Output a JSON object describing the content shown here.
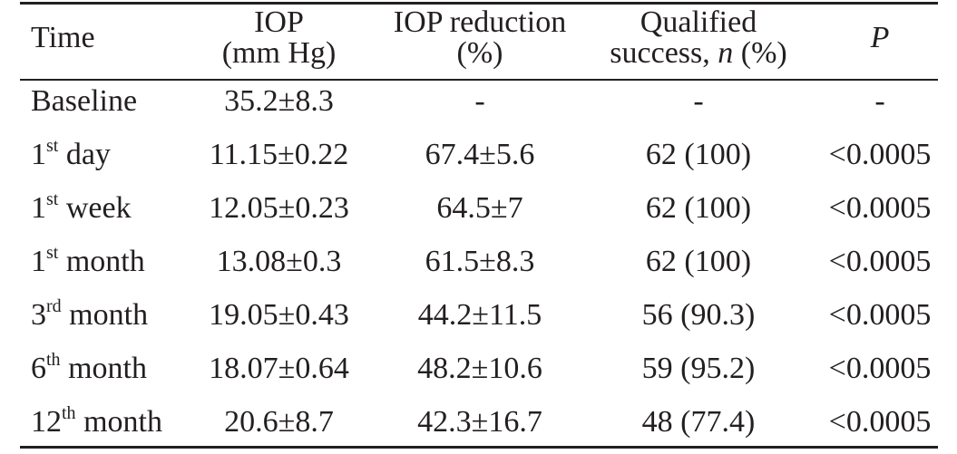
{
  "table": {
    "headers": {
      "time": "Time",
      "iop_line1": "IOP",
      "iop_line2": "(mm Hg)",
      "reduction_line1": "IOP reduction",
      "reduction_line2": "(%)",
      "success_line1": "Qualified",
      "success_line2_a": "success, ",
      "success_line2_n": "n",
      "success_line2_b": " (%)",
      "p": "P"
    },
    "rows": [
      {
        "time_num": "",
        "time_sup": "",
        "time_label": "Baseline",
        "iop": "35.2±8.3",
        "reduction": "-",
        "success": "-",
        "p": "-"
      },
      {
        "time_num": "1",
        "time_sup": "st",
        "time_label": " day",
        "iop": "11.15±0.22",
        "reduction": "67.4±5.6",
        "success": "62 (100)",
        "p": "<0.0005"
      },
      {
        "time_num": "1",
        "time_sup": "st",
        "time_label": " week",
        "iop": "12.05±0.23",
        "reduction": "64.5±7",
        "success": "62 (100)",
        "p": "<0.0005"
      },
      {
        "time_num": "1",
        "time_sup": "st",
        "time_label": " month",
        "iop": "13.08±0.3",
        "reduction": "61.5±8.3",
        "success": "62 (100)",
        "p": "<0.0005"
      },
      {
        "time_num": "3",
        "time_sup": "rd",
        "time_label": " month",
        "iop": "19.05±0.43",
        "reduction": "44.2±11.5",
        "success": "56 (90.3)",
        "p": "<0.0005"
      },
      {
        "time_num": "6",
        "time_sup": "th",
        "time_label": " month",
        "iop": "18.07±0.64",
        "reduction": "48.2±10.6",
        "success": "59 (95.2)",
        "p": "<0.0005"
      },
      {
        "time_num": "12",
        "time_sup": "th",
        "time_label": " month",
        "iop": "20.6±8.7",
        "reduction": "42.3±16.7",
        "success": "48 (77.4)",
        "p": "<0.0005"
      }
    ]
  }
}
